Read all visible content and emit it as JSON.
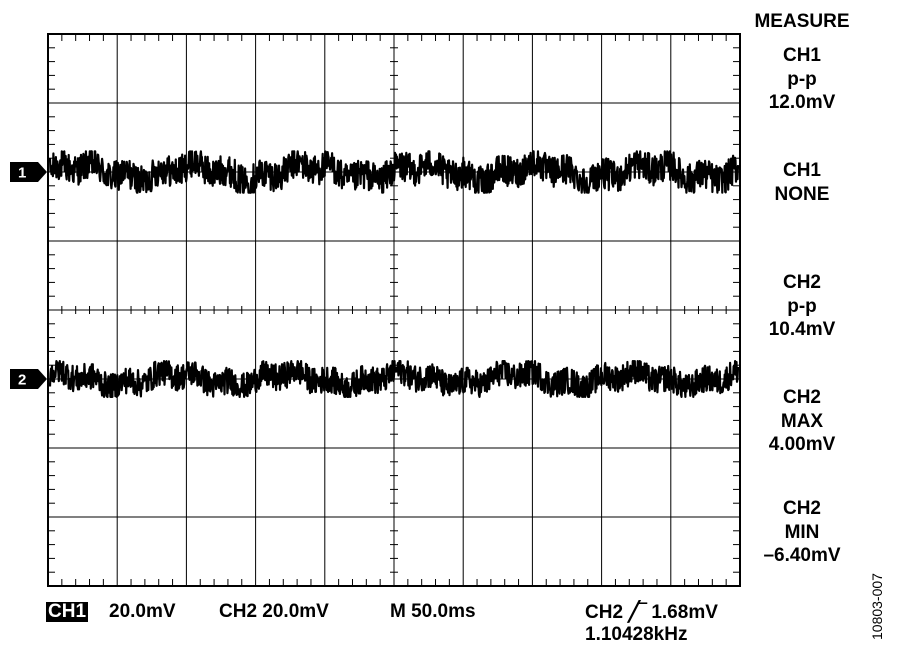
{
  "measure": {
    "heading": "MEASURE",
    "blocks": [
      {
        "lines": [
          "CH1",
          "p-p",
          "12.0mV"
        ]
      },
      {
        "lines": [
          "CH1",
          "NONE"
        ]
      },
      {
        "lines": [
          "CH2",
          "p-p",
          "10.4mV"
        ]
      },
      {
        "lines": [
          "CH2",
          "MAX",
          "4.00mV"
        ]
      },
      {
        "lines": [
          "CH2",
          "MIN",
          "–6.40mV"
        ]
      }
    ]
  },
  "bottom_bar": {
    "ch1_label": "CH1",
    "ch1_scale": "20.0mV",
    "ch2_scale": "CH2 20.0mV",
    "timebase": "M 50.0ms",
    "trigger": "CH2 ╱‾ 1.68mV",
    "frequency": "1.10428kHz"
  },
  "figure_id": "10803-007",
  "chart_data": {
    "type": "line",
    "grid": true,
    "divisions": {
      "x": 10,
      "y": 8
    },
    "x_per_div": "50.0ms",
    "y_per_div": "20.0mV",
    "series": [
      {
        "name": "1",
        "marker": "1",
        "offset_div": 2.0,
        "pp_mV": 12.0,
        "color": "#000000"
      },
      {
        "name": "2",
        "marker": "2",
        "offset_div": -1.0,
        "pp_mV": 10.4,
        "max_mV": 4.0,
        "min_mV": -6.4,
        "color": "#000000"
      }
    ]
  }
}
